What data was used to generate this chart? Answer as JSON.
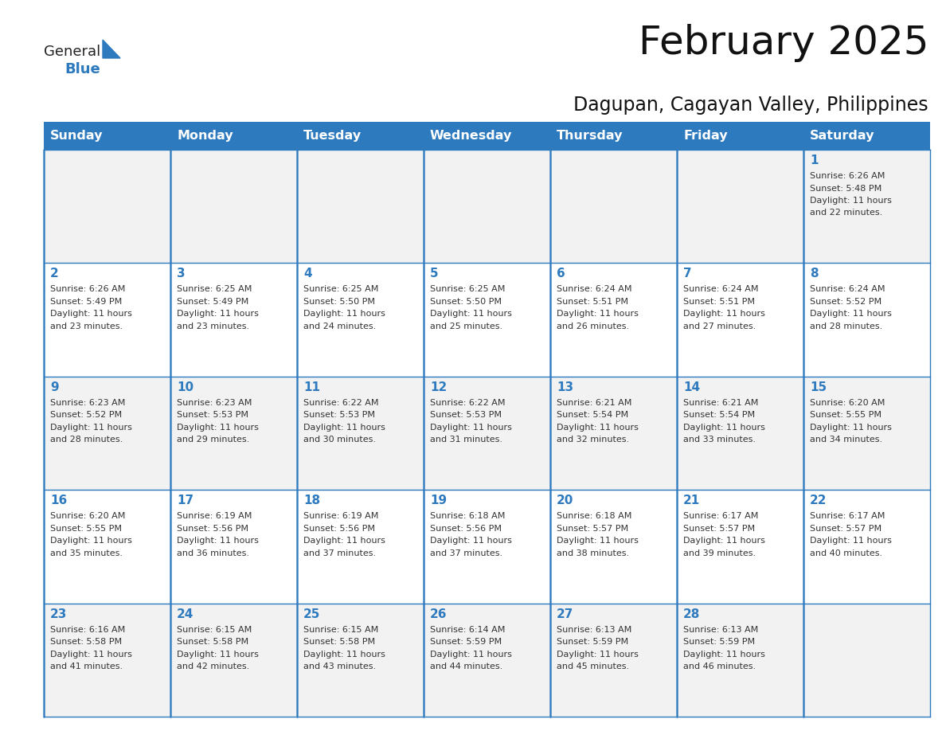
{
  "title": "February 2025",
  "subtitle": "Dagupan, Cagayan Valley, Philippines",
  "header_bg_color": "#2E7ABF",
  "header_text_color": "#FFFFFF",
  "cell_bg_color": "#FFFFFF",
  "alt_cell_bg_color": "#F2F2F2",
  "border_color": "#2E7ABF",
  "day_number_color": "#2E7ABF",
  "text_color": "#333333",
  "days_of_week": [
    "Sunday",
    "Monday",
    "Tuesday",
    "Wednesday",
    "Thursday",
    "Friday",
    "Saturday"
  ],
  "calendar_data": [
    [
      null,
      null,
      null,
      null,
      null,
      null,
      1
    ],
    [
      2,
      3,
      4,
      5,
      6,
      7,
      8
    ],
    [
      9,
      10,
      11,
      12,
      13,
      14,
      15
    ],
    [
      16,
      17,
      18,
      19,
      20,
      21,
      22
    ],
    [
      23,
      24,
      25,
      26,
      27,
      28,
      null
    ]
  ],
  "sunrise_data": {
    "1": "6:26 AM",
    "2": "6:26 AM",
    "3": "6:25 AM",
    "4": "6:25 AM",
    "5": "6:25 AM",
    "6": "6:24 AM",
    "7": "6:24 AM",
    "8": "6:24 AM",
    "9": "6:23 AM",
    "10": "6:23 AM",
    "11": "6:22 AM",
    "12": "6:22 AM",
    "13": "6:21 AM",
    "14": "6:21 AM",
    "15": "6:20 AM",
    "16": "6:20 AM",
    "17": "6:19 AM",
    "18": "6:19 AM",
    "19": "6:18 AM",
    "20": "6:18 AM",
    "21": "6:17 AM",
    "22": "6:17 AM",
    "23": "6:16 AM",
    "24": "6:15 AM",
    "25": "6:15 AM",
    "26": "6:14 AM",
    "27": "6:13 AM",
    "28": "6:13 AM"
  },
  "sunset_data": {
    "1": "5:48 PM",
    "2": "5:49 PM",
    "3": "5:49 PM",
    "4": "5:50 PM",
    "5": "5:50 PM",
    "6": "5:51 PM",
    "7": "5:51 PM",
    "8": "5:52 PM",
    "9": "5:52 PM",
    "10": "5:53 PM",
    "11": "5:53 PM",
    "12": "5:53 PM",
    "13": "5:54 PM",
    "14": "5:54 PM",
    "15": "5:55 PM",
    "16": "5:55 PM",
    "17": "5:56 PM",
    "18": "5:56 PM",
    "19": "5:56 PM",
    "20": "5:57 PM",
    "21": "5:57 PM",
    "22": "5:57 PM",
    "23": "5:58 PM",
    "24": "5:58 PM",
    "25": "5:58 PM",
    "26": "5:59 PM",
    "27": "5:59 PM",
    "28": "5:59 PM"
  },
  "daylight_data": {
    "1": "22",
    "2": "23",
    "3": "23",
    "4": "24",
    "5": "25",
    "6": "26",
    "7": "27",
    "8": "28",
    "9": "28",
    "10": "29",
    "11": "30",
    "12": "31",
    "13": "32",
    "14": "33",
    "15": "34",
    "16": "35",
    "17": "36",
    "18": "37",
    "19": "37",
    "20": "38",
    "21": "39",
    "22": "40",
    "23": "41",
    "24": "42",
    "25": "43",
    "26": "44",
    "27": "45",
    "28": "46"
  },
  "logo_text_general": "General",
  "logo_text_blue": "Blue",
  "logo_color_general": "#222222",
  "logo_color_blue": "#2E7ABF",
  "logo_triangle_color": "#2E7ABF"
}
